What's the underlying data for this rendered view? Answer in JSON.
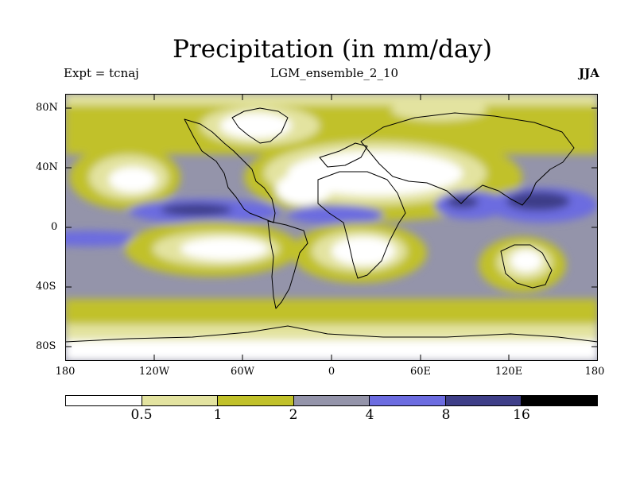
{
  "title": "Precipitation (in mm/day)",
  "subtitle_left": "Expt = tcnaj",
  "subtitle_center": "LGM_ensemble_2_10",
  "subtitle_right": "JJA",
  "y_axis_labels": [
    "80N",
    "40N",
    "0",
    "40S",
    "80S"
  ],
  "x_axis_labels": [
    "180",
    "120W",
    "60W",
    "0",
    "60E",
    "120E",
    "180"
  ],
  "colorbar": {
    "levels": [
      "0.5",
      "1",
      "2",
      "4",
      "8",
      "16"
    ],
    "colors": [
      "#ffffff",
      "#e3e3a0",
      "#c1c12a",
      "#9494aa",
      "#6c6ce0",
      "#3e3e88",
      "#000000"
    ]
  }
}
